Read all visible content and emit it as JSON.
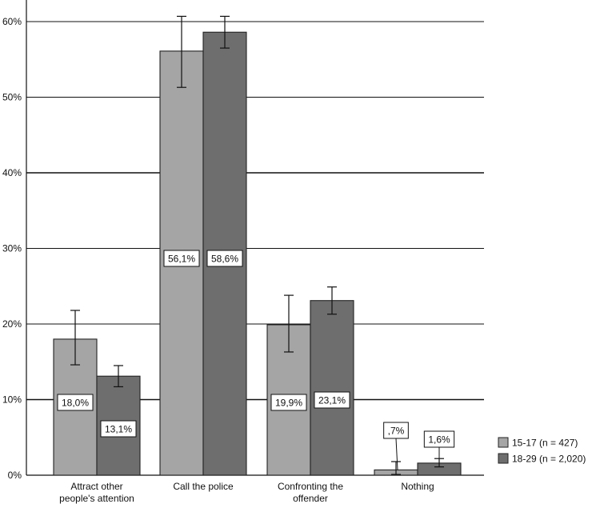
{
  "chart_data": {
    "type": "bar",
    "title": "",
    "xlabel": "",
    "ylabel": "",
    "ylim": [
      0,
      60
    ],
    "yticks": [
      0,
      10,
      20,
      30,
      40,
      50,
      60
    ],
    "ytick_labels": [
      "0%",
      "10%",
      "20%",
      "30%",
      "40%",
      "50%",
      "60%"
    ],
    "grid": true,
    "legend_position": "right",
    "categories": [
      [
        "Attract other",
        "people's attention"
      ],
      [
        "Call the police"
      ],
      [
        "Confronting the",
        "offender"
      ],
      [
        "Nothing"
      ]
    ],
    "series": [
      {
        "name": "15-17 (n = 427)",
        "color": "#a5a5a5",
        "values": [
          18.0,
          56.1,
          19.9,
          0.7
        ],
        "labels": [
          "18,0%",
          "56,1%",
          "19,9%",
          ",7%"
        ],
        "error_low": [
          14.6,
          51.3,
          16.3,
          0.1
        ],
        "error_high": [
          21.8,
          60.7,
          23.8,
          1.8
        ]
      },
      {
        "name": "18-29 (n = 2,020)",
        "color": "#6e6e6e",
        "values": [
          13.1,
          58.6,
          23.1,
          1.6
        ],
        "labels": [
          "13,1%",
          "58,6%",
          "23,1%",
          "1,6%"
        ],
        "error_low": [
          11.7,
          56.5,
          21.3,
          1.1
        ],
        "error_high": [
          14.5,
          60.7,
          24.9,
          2.2
        ]
      }
    ]
  }
}
